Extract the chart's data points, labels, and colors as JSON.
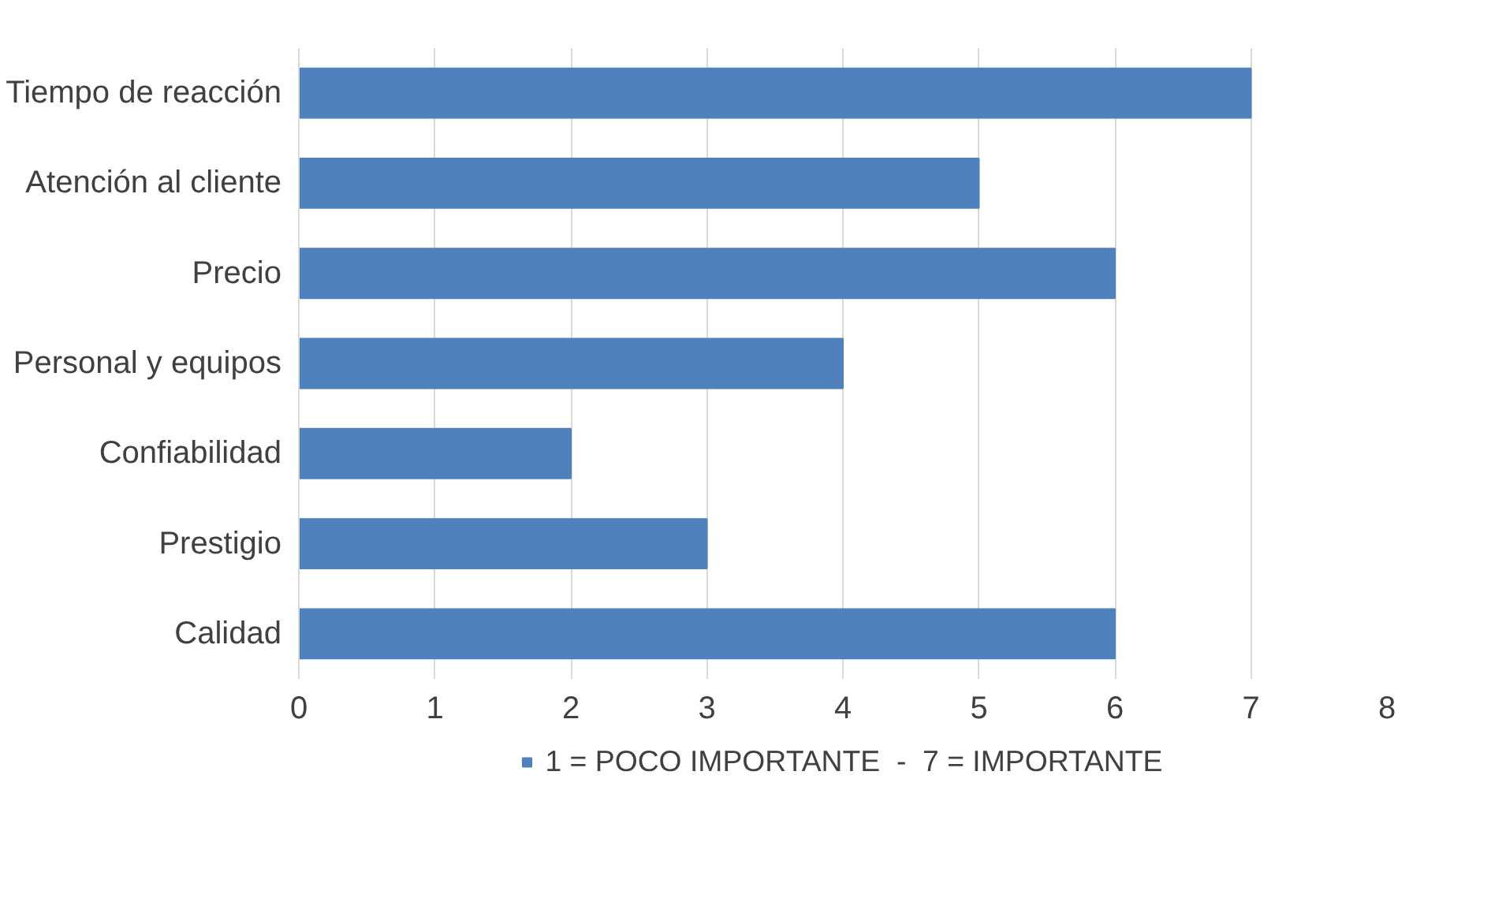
{
  "chart_data": {
    "type": "bar",
    "orientation": "horizontal",
    "categories": [
      "Tiempo de reacción",
      "Atención al cliente",
      "Precio",
      "Personal y equipos",
      "Confiabilidad",
      "Prestigio",
      "Calidad"
    ],
    "series": [
      {
        "name": "1 = POCO IMPORTANTE  -  7 = IMPORTANTE",
        "color": "#4f81bd",
        "values": [
          7,
          5,
          6,
          4,
          2,
          3,
          6
        ]
      }
    ],
    "xlim": [
      0,
      8
    ],
    "xticks": [
      0,
      1,
      2,
      3,
      4,
      5,
      6,
      7,
      8
    ],
    "grid": "x",
    "legend": "bottom"
  }
}
